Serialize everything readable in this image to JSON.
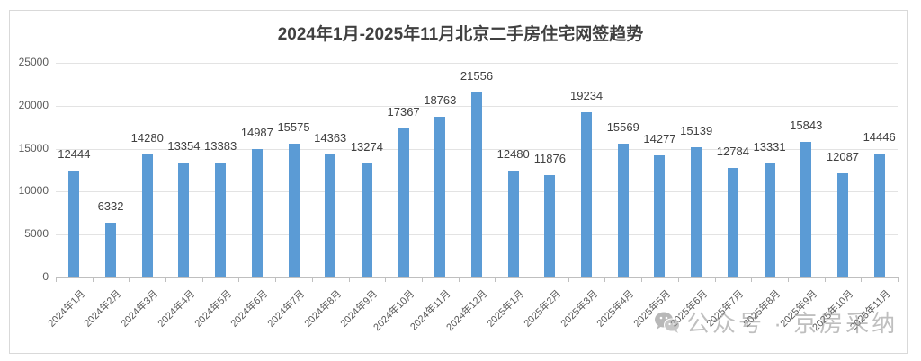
{
  "title": "2024年1月-2025年11月北京二手房住宅网签趋势",
  "watermark": {
    "icon": "wechat-icon",
    "text": "公众号 · 京房采纳"
  },
  "colors": {
    "bar": "#5b9bd5",
    "grid": "#e3e3e3",
    "text": "#404040"
  },
  "y_axis": {
    "ticks": [
      "0",
      "5000",
      "10000",
      "15000",
      "20000",
      "25000"
    ]
  },
  "chart_data": {
    "type": "bar",
    "title": "2024年1月-2025年11月北京二手房住宅网签趋势",
    "xlabel": "",
    "ylabel": "",
    "ylim": [
      0,
      25000
    ],
    "yticks": [
      0,
      5000,
      10000,
      15000,
      20000,
      25000
    ],
    "grid": true,
    "legend": null,
    "categories": [
      "2024年1月",
      "2024年2月",
      "2024年3月",
      "2024年4月",
      "2024年5月",
      "2024年6月",
      "2024年7月",
      "2024年8月",
      "2024年9月",
      "2024年10月",
      "2024年11月",
      "2024年12月",
      "2025年1月",
      "2025年2月",
      "2025年3月",
      "2025年4月",
      "2025年5月",
      "2025年6月",
      "2025年7月",
      "2025年8月",
      "2025年9月",
      "2025年10月",
      "2025年11月"
    ],
    "values": [
      12444,
      6332,
      14280,
      13354,
      13383,
      14987,
      15575,
      14363,
      13274,
      17367,
      18763,
      21556,
      12480,
      11876,
      19234,
      15569,
      14277,
      15139,
      12784,
      13331,
      15843,
      12087,
      14446
    ],
    "data_labels": true
  }
}
